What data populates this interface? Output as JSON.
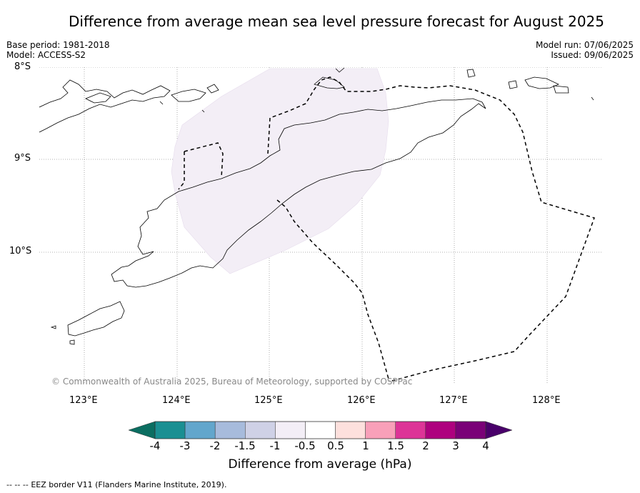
{
  "title": "Difference from average mean sea level pressure forecast for August 2025",
  "header": {
    "base_period": "Base period: 1981-2018",
    "model": "Model: ACCESS-S2",
    "model_run": "Model run: 07/06/2025",
    "issued": "Issued: 09/06/2025"
  },
  "axes": {
    "lat_labels": [
      "8°S",
      "9°S",
      "10°S"
    ],
    "lon_labels": [
      "123°E",
      "124°E",
      "125°E",
      "126°E",
      "127°E",
      "128°E"
    ]
  },
  "map": {
    "copyright": "© Commonwealth of Australia 2025, Bureau of Meteorology, supported by COSPPac",
    "anomaly_region_bin": "-1 to -0.5",
    "anomaly_color": "#f3eef6"
  },
  "colorbar": {
    "label": "Difference from average (hPa)",
    "ticks": [
      "-4",
      "-3",
      "-2",
      "-1.5",
      "-1",
      "-0.5",
      "0.5",
      "1",
      "1.5",
      "2",
      "3",
      "4"
    ],
    "colors": [
      "#1a8f92",
      "#62a6cc",
      "#a7bbdc",
      "#cfd1e6",
      "#f3eef6",
      "#ffffff",
      "#fde0dd",
      "#f8a0b9",
      "#dd3497",
      "#ae017e",
      "#7a0177"
    ],
    "under_color": "#0b6e61",
    "over_color": "#49006a"
  },
  "footer": {
    "legend_symbol": "--  --  --",
    "legend_text": "EEZ border V11 (Flanders Marine Institute, 2019)."
  }
}
